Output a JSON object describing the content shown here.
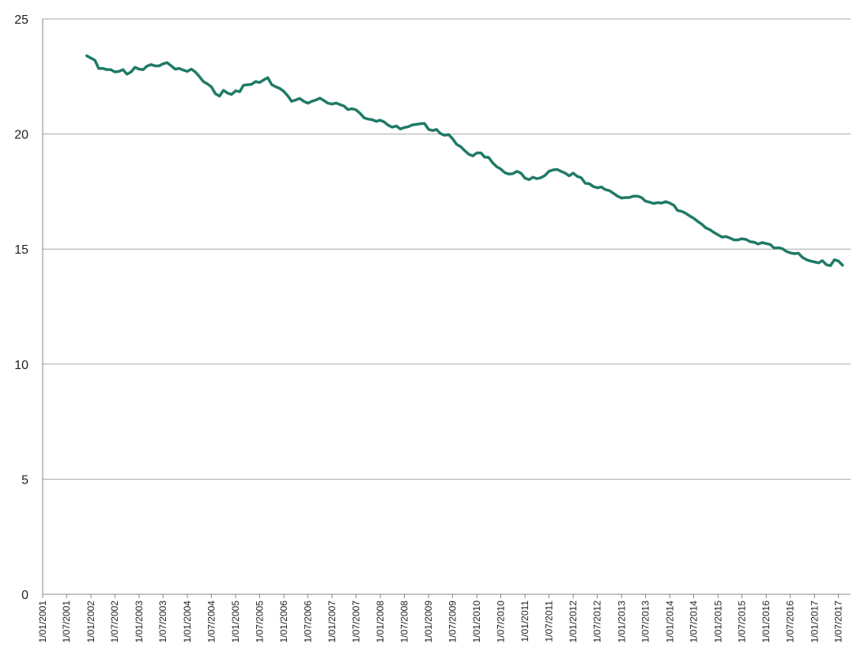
{
  "chart_data": {
    "type": "line",
    "title": "",
    "xlabel": "",
    "ylabel": "",
    "ylim": [
      0,
      25
    ],
    "yticks": [
      "0",
      "5",
      "10",
      "15",
      "20",
      "25"
    ],
    "xlim": [
      "2001-01-01",
      "2017-10-01"
    ],
    "xticks": [
      "1/01/2001",
      "1/07/2001",
      "1/01/2002",
      "1/07/2002",
      "1/01/2003",
      "1/07/2003",
      "1/01/2004",
      "1/07/2004",
      "1/01/2005",
      "1/07/2005",
      "1/01/2006",
      "1/07/2006",
      "1/01/2007",
      "1/07/2007",
      "1/01/2008",
      "1/07/2008",
      "1/01/2009",
      "1/07/2009",
      "1/01/2010",
      "1/07/2010",
      "1/01/2011",
      "1/07/2011",
      "1/01/2012",
      "1/07/2012",
      "1/01/2013",
      "1/07/2013",
      "1/01/2014",
      "1/07/2014",
      "1/01/2015",
      "1/07/2015",
      "1/01/2016",
      "1/07/2016",
      "1/01/2017",
      "1/07/2017"
    ],
    "grid": true,
    "legend": "none",
    "series": [
      {
        "color": "#1f7a66",
        "points": [
          [
            "2001-12-01",
            23.4
          ],
          [
            "2002-01-01",
            23.3
          ],
          [
            "2002-02-01",
            23.2
          ],
          [
            "2002-03-01",
            22.85
          ],
          [
            "2002-04-01",
            22.85
          ],
          [
            "2002-05-01",
            22.8
          ],
          [
            "2002-06-01",
            22.8
          ],
          [
            "2002-07-01",
            22.7
          ],
          [
            "2002-08-01",
            22.72
          ],
          [
            "2002-09-01",
            22.8
          ],
          [
            "2002-10-01",
            22.6
          ],
          [
            "2002-11-01",
            22.7
          ],
          [
            "2002-12-01",
            22.9
          ],
          [
            "2003-01-01",
            22.82
          ],
          [
            "2003-02-01",
            22.8
          ],
          [
            "2003-03-01",
            22.95
          ],
          [
            "2003-04-01",
            23.02
          ],
          [
            "2003-05-01",
            22.96
          ],
          [
            "2003-06-01",
            22.96
          ],
          [
            "2003-07-01",
            23.05
          ],
          [
            "2003-08-01",
            23.1
          ],
          [
            "2003-09-01",
            22.96
          ],
          [
            "2003-10-01",
            22.82
          ],
          [
            "2003-11-01",
            22.85
          ],
          [
            "2003-12-01",
            22.78
          ],
          [
            "2004-01-01",
            22.72
          ],
          [
            "2004-02-01",
            22.82
          ],
          [
            "2004-03-01",
            22.7
          ],
          [
            "2004-04-01",
            22.5
          ],
          [
            "2004-05-01",
            22.28
          ],
          [
            "2004-06-01",
            22.18
          ],
          [
            "2004-07-01",
            22.05
          ],
          [
            "2004-08-01",
            21.75
          ],
          [
            "2004-09-01",
            21.65
          ],
          [
            "2004-10-01",
            21.9
          ],
          [
            "2004-11-01",
            21.78
          ],
          [
            "2004-12-01",
            21.72
          ],
          [
            "2005-01-01",
            21.88
          ],
          [
            "2005-02-01",
            21.84
          ],
          [
            "2005-03-01",
            22.12
          ],
          [
            "2005-04-01",
            22.14
          ],
          [
            "2005-05-01",
            22.16
          ],
          [
            "2005-06-01",
            22.28
          ],
          [
            "2005-07-01",
            22.24
          ],
          [
            "2005-08-01",
            22.35
          ],
          [
            "2005-09-01",
            22.45
          ],
          [
            "2005-10-01",
            22.15
          ],
          [
            "2005-11-01",
            22.05
          ],
          [
            "2005-12-01",
            21.98
          ],
          [
            "2006-01-01",
            21.85
          ],
          [
            "2006-02-01",
            21.65
          ],
          [
            "2006-03-01",
            21.42
          ],
          [
            "2006-04-01",
            21.48
          ],
          [
            "2006-05-01",
            21.55
          ],
          [
            "2006-06-01",
            21.42
          ],
          [
            "2006-07-01",
            21.34
          ],
          [
            "2006-08-01",
            21.42
          ],
          [
            "2006-09-01",
            21.48
          ],
          [
            "2006-10-01",
            21.56
          ],
          [
            "2006-11-01",
            21.45
          ],
          [
            "2006-12-01",
            21.34
          ],
          [
            "2007-01-01",
            21.3
          ],
          [
            "2007-02-01",
            21.35
          ],
          [
            "2007-03-01",
            21.28
          ],
          [
            "2007-04-01",
            21.22
          ],
          [
            "2007-05-01",
            21.06
          ],
          [
            "2007-06-01",
            21.1
          ],
          [
            "2007-07-01",
            21.05
          ],
          [
            "2007-08-01",
            20.9
          ],
          [
            "2007-09-01",
            20.7
          ],
          [
            "2007-10-01",
            20.65
          ],
          [
            "2007-11-01",
            20.62
          ],
          [
            "2007-12-01",
            20.55
          ],
          [
            "2008-01-01",
            20.6
          ],
          [
            "2008-02-01",
            20.52
          ],
          [
            "2008-03-01",
            20.38
          ],
          [
            "2008-04-01",
            20.3
          ],
          [
            "2008-05-01",
            20.35
          ],
          [
            "2008-06-01",
            20.22
          ],
          [
            "2008-07-01",
            20.28
          ],
          [
            "2008-08-01",
            20.32
          ],
          [
            "2008-09-01",
            20.4
          ],
          [
            "2008-10-01",
            20.42
          ],
          [
            "2008-11-01",
            20.45
          ],
          [
            "2008-12-01",
            20.46
          ],
          [
            "2009-01-01",
            20.2
          ],
          [
            "2009-02-01",
            20.15
          ],
          [
            "2009-03-01",
            20.2
          ],
          [
            "2009-04-01",
            20.02
          ],
          [
            "2009-05-01",
            19.95
          ],
          [
            "2009-06-01",
            19.98
          ],
          [
            "2009-07-01",
            19.8
          ],
          [
            "2009-08-01",
            19.55
          ],
          [
            "2009-09-01",
            19.45
          ],
          [
            "2009-10-01",
            19.28
          ],
          [
            "2009-11-01",
            19.12
          ],
          [
            "2009-12-01",
            19.05
          ],
          [
            "2010-01-01",
            19.18
          ],
          [
            "2010-02-01",
            19.18
          ],
          [
            "2010-03-01",
            19.0
          ],
          [
            "2010-04-01",
            18.98
          ],
          [
            "2010-05-01",
            18.75
          ],
          [
            "2010-06-01",
            18.58
          ],
          [
            "2010-07-01",
            18.48
          ],
          [
            "2010-08-01",
            18.32
          ],
          [
            "2010-09-01",
            18.26
          ],
          [
            "2010-10-01",
            18.28
          ],
          [
            "2010-11-01",
            18.38
          ],
          [
            "2010-12-01",
            18.3
          ],
          [
            "2011-01-01",
            18.08
          ],
          [
            "2011-02-01",
            18.02
          ],
          [
            "2011-03-01",
            18.12
          ],
          [
            "2011-04-01",
            18.06
          ],
          [
            "2011-05-01",
            18.1
          ],
          [
            "2011-06-01",
            18.2
          ],
          [
            "2011-07-01",
            18.38
          ],
          [
            "2011-08-01",
            18.44
          ],
          [
            "2011-09-01",
            18.46
          ],
          [
            "2011-10-01",
            18.38
          ],
          [
            "2011-11-01",
            18.3
          ],
          [
            "2011-12-01",
            18.18
          ],
          [
            "2012-01-01",
            18.3
          ],
          [
            "2012-02-01",
            18.16
          ],
          [
            "2012-03-01",
            18.1
          ],
          [
            "2012-04-01",
            17.86
          ],
          [
            "2012-05-01",
            17.84
          ],
          [
            "2012-06-01",
            17.72
          ],
          [
            "2012-07-01",
            17.66
          ],
          [
            "2012-08-01",
            17.7
          ],
          [
            "2012-09-01",
            17.58
          ],
          [
            "2012-10-01",
            17.54
          ],
          [
            "2012-11-01",
            17.42
          ],
          [
            "2012-12-01",
            17.3
          ],
          [
            "2013-01-01",
            17.22
          ],
          [
            "2013-02-01",
            17.24
          ],
          [
            "2013-03-01",
            17.24
          ],
          [
            "2013-04-01",
            17.3
          ],
          [
            "2013-05-01",
            17.3
          ],
          [
            "2013-06-01",
            17.24
          ],
          [
            "2013-07-01",
            17.08
          ],
          [
            "2013-08-01",
            17.04
          ],
          [
            "2013-09-01",
            16.98
          ],
          [
            "2013-10-01",
            17.02
          ],
          [
            "2013-11-01",
            17.0
          ],
          [
            "2013-12-01",
            17.06
          ],
          [
            "2014-01-01",
            17.0
          ],
          [
            "2014-02-01",
            16.9
          ],
          [
            "2014-03-01",
            16.68
          ],
          [
            "2014-04-01",
            16.64
          ],
          [
            "2014-05-01",
            16.56
          ],
          [
            "2014-06-01",
            16.44
          ],
          [
            "2014-07-01",
            16.34
          ],
          [
            "2014-08-01",
            16.2
          ],
          [
            "2014-09-01",
            16.08
          ],
          [
            "2014-10-01",
            15.92
          ],
          [
            "2014-11-01",
            15.84
          ],
          [
            "2014-12-01",
            15.72
          ],
          [
            "2015-01-01",
            15.62
          ],
          [
            "2015-02-01",
            15.52
          ],
          [
            "2015-03-01",
            15.55
          ],
          [
            "2015-04-01",
            15.48
          ],
          [
            "2015-05-01",
            15.4
          ],
          [
            "2015-06-01",
            15.4
          ],
          [
            "2015-07-01",
            15.45
          ],
          [
            "2015-08-01",
            15.42
          ],
          [
            "2015-09-01",
            15.32
          ],
          [
            "2015-10-01",
            15.3
          ],
          [
            "2015-11-01",
            15.22
          ],
          [
            "2015-12-01",
            15.28
          ],
          [
            "2016-01-01",
            15.24
          ],
          [
            "2016-02-01",
            15.2
          ],
          [
            "2016-03-01",
            15.04
          ],
          [
            "2016-04-01",
            15.06
          ],
          [
            "2016-05-01",
            15.02
          ],
          [
            "2016-06-01",
            14.9
          ],
          [
            "2016-07-01",
            14.84
          ],
          [
            "2016-08-01",
            14.8
          ],
          [
            "2016-09-01",
            14.82
          ],
          [
            "2016-10-01",
            14.64
          ],
          [
            "2016-11-01",
            14.54
          ],
          [
            "2016-12-01",
            14.48
          ],
          [
            "2017-01-01",
            14.44
          ],
          [
            "2017-02-01",
            14.4
          ],
          [
            "2017-03-01",
            14.5
          ],
          [
            "2017-04-01",
            14.32
          ],
          [
            "2017-05-01",
            14.28
          ],
          [
            "2017-06-01",
            14.54
          ],
          [
            "2017-07-01",
            14.48
          ],
          [
            "2017-08-01",
            14.3
          ]
        ]
      }
    ]
  }
}
